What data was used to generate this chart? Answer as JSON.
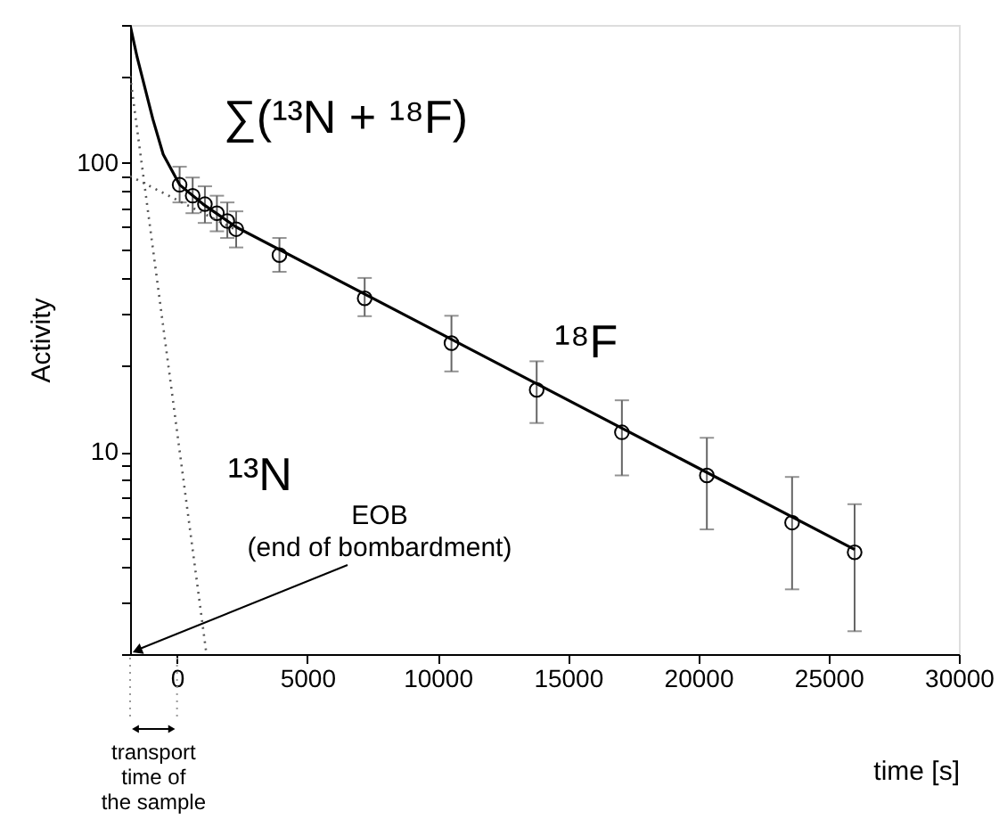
{
  "chart_data": {
    "type": "scatter",
    "xlabel": "time [s]",
    "ylabel": "Activity",
    "log": "y",
    "grid": false,
    "xlim": [
      -1800,
      30000
    ],
    "ylim": [
      2,
      300
    ],
    "xticks": [
      0,
      5000,
      10000,
      15000,
      20000,
      25000,
      30000
    ],
    "yticks": [
      {
        "value": 2,
        "label": null
      },
      {
        "value": 3,
        "label": null
      },
      {
        "value": 4,
        "label": null
      },
      {
        "value": 5,
        "label": null
      },
      {
        "value": 6,
        "label": null
      },
      {
        "value": 7,
        "label": null
      },
      {
        "value": 8,
        "label": null
      },
      {
        "value": 9,
        "label": null
      },
      10,
      {
        "value": 20,
        "label": null
      },
      {
        "value": 30,
        "label": null
      },
      {
        "value": 40,
        "label": null
      },
      {
        "value": 50,
        "label": null
      },
      {
        "value": 60,
        "label": null
      },
      {
        "value": 70,
        "label": null
      },
      {
        "value": 80,
        "label": null
      },
      {
        "value": 90,
        "label": null
      },
      100,
      {
        "value": 200,
        "label": null
      },
      {
        "value": 300,
        "label": null
      }
    ],
    "series": [
      {
        "marker": "circle",
        "color": "#000000",
        "x": [
          100,
          600,
          1070,
          1530,
          1930,
          2270,
          3930,
          7200,
          10530,
          13800,
          17070,
          20330,
          23600,
          26000
        ],
        "values": [
          84,
          77,
          72,
          67,
          63,
          59,
          48,
          34,
          23.8,
          16.4,
          11.7,
          8.3,
          5.7,
          4.5
        ],
        "errors": [
          [
            73,
            97
          ],
          [
            67,
            89
          ],
          [
            62,
            83
          ],
          [
            58,
            77
          ],
          [
            55,
            73
          ],
          [
            51,
            68
          ],
          [
            42,
            55
          ],
          [
            29.5,
            40
          ],
          [
            19,
            29.6
          ],
          [
            12.6,
            20.6
          ],
          [
            8.3,
            15.1
          ],
          [
            5.4,
            11.2
          ],
          [
            3.35,
            8.2
          ],
          [
            2.4,
            6.6
          ]
        ]
      },
      {
        "type": "line",
        "name": "∑(¹³N + ¹⁸F)",
        "color": "#000000",
        "line_style": "solid",
        "x": [
          -1800,
          -1530,
          -930,
          -530,
          100,
          1000,
          2270,
          26000
        ],
        "values": [
          300,
          232,
          142,
          107,
          84,
          72,
          60,
          4.6
        ]
      },
      {
        "type": "line",
        "name": "¹³N",
        "color": "#555555",
        "line_style": "dotted",
        "x": [
          -1800,
          1130
        ],
        "values": [
          200,
          2
        ]
      },
      {
        "type": "line",
        "color": "#555555",
        "line_style": "dotted",
        "x": [
          -1800,
          2270
        ],
        "values": [
          90,
          58.6
        ]
      }
    ],
    "annotations": [
      "¹⁸F",
      "EOB\n(end of bombardment)",
      "transport\ntime of\nthe sample"
    ]
  }
}
